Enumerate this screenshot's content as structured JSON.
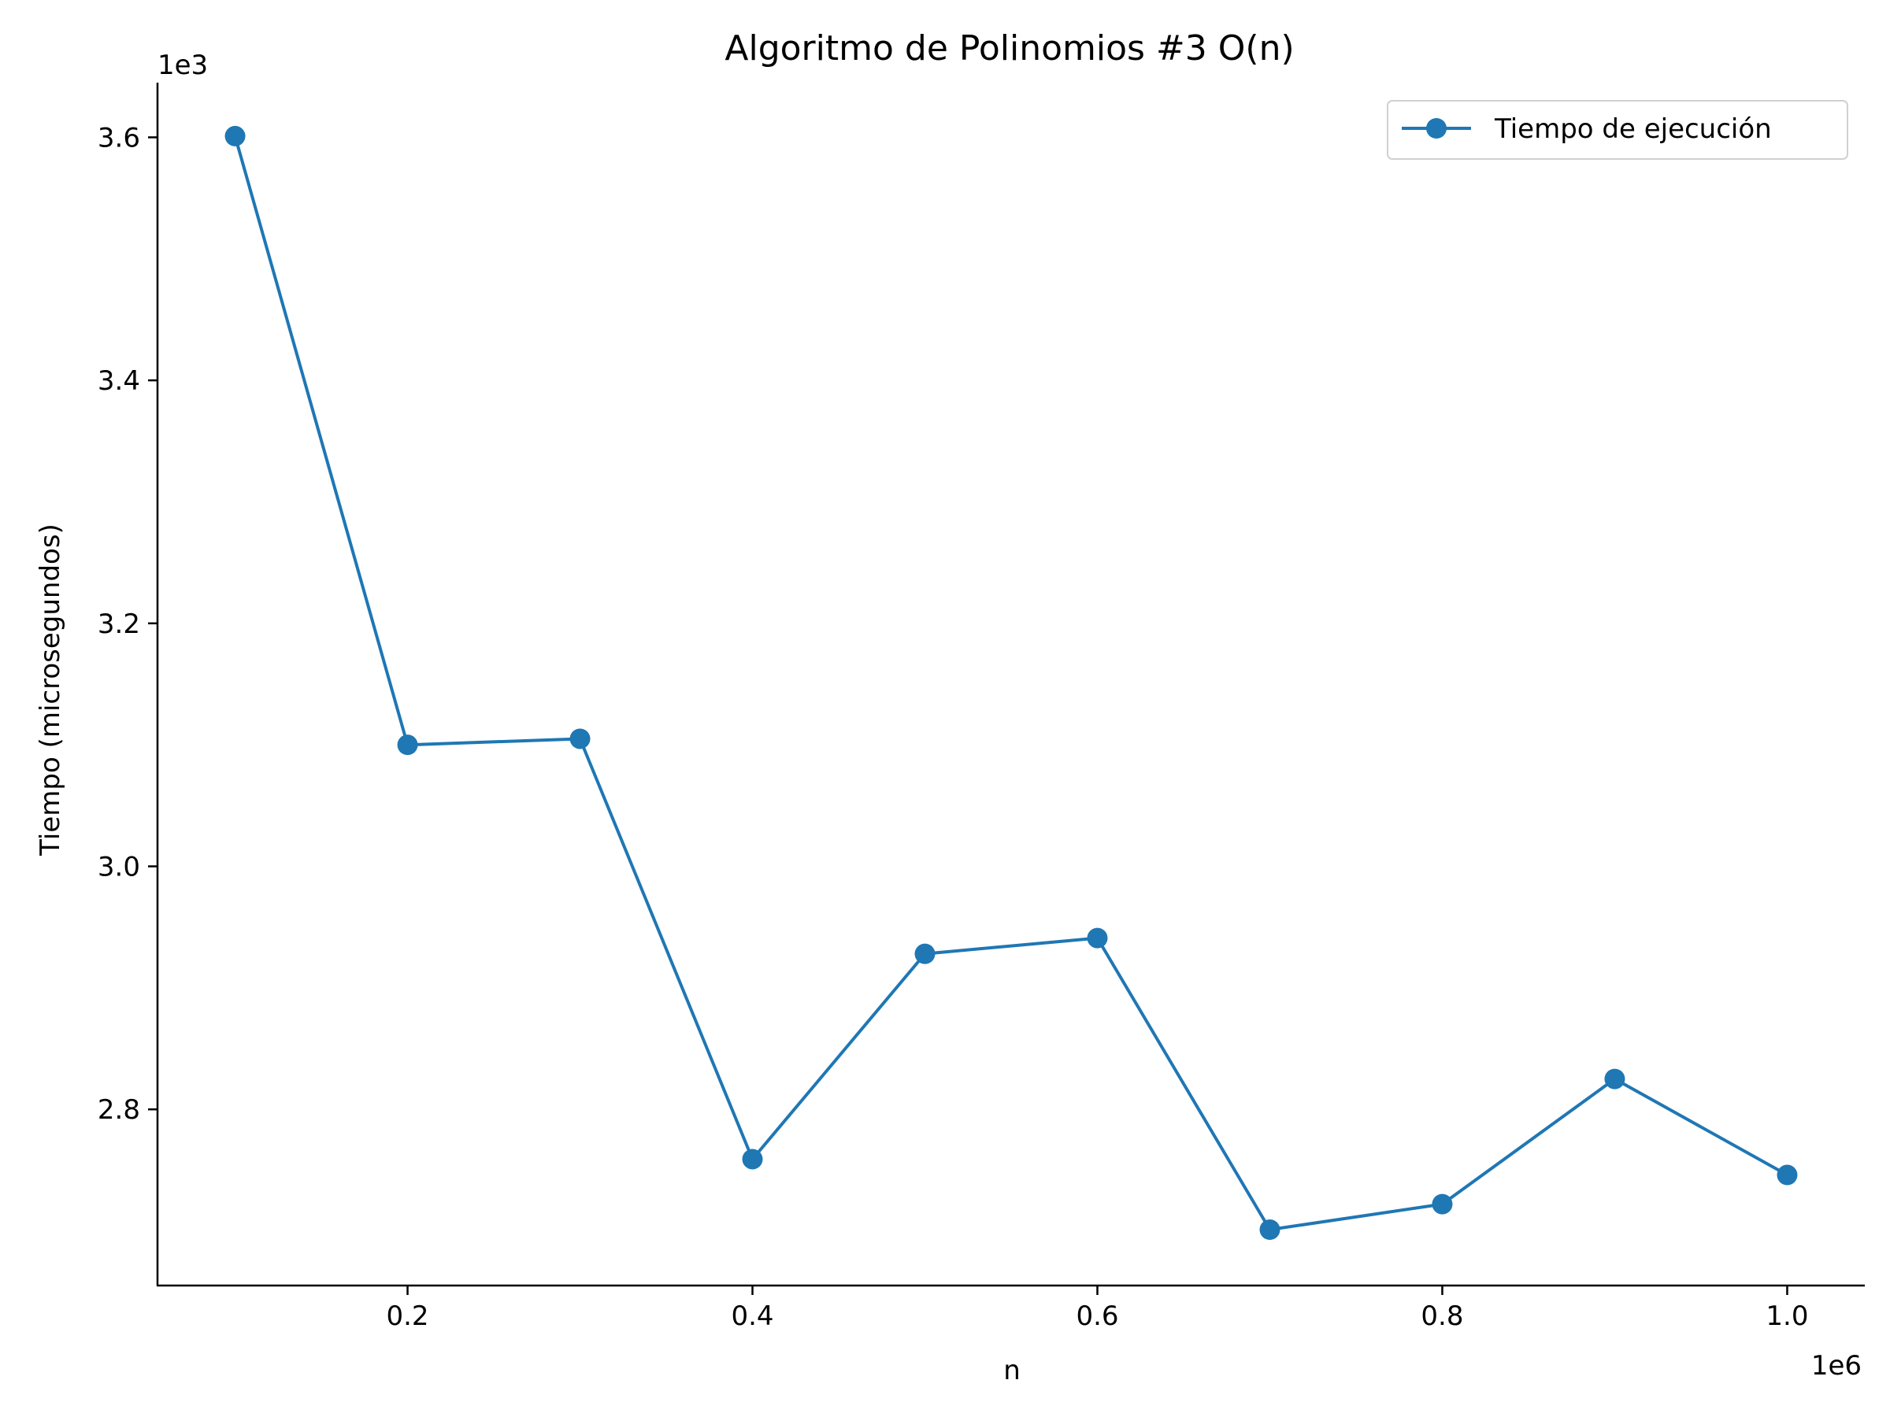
{
  "chart_data": {
    "type": "line",
    "title": "Algoritmo de Polinomios #3 O(n)",
    "xlabel": "n",
    "ylabel": "Tiempo (microsegundos)",
    "x_offset_label": "1e6",
    "y_offset_label": "1e3",
    "x_ticks": [
      "0.2",
      "0.4",
      "0.6",
      "0.8",
      "1.0"
    ],
    "y_ticks": [
      "2.8",
      "3.0",
      "3.2",
      "3.4",
      "3.6"
    ],
    "xlim": [
      55000,
      1045000
    ],
    "ylim": [
      2655,
      3645
    ],
    "grid": false,
    "legend_position": "top-right",
    "color": "#1f77b4",
    "series": [
      {
        "name": "Tiempo de ejecución",
        "x": [
          100000,
          200000,
          300000,
          400000,
          500000,
          600000,
          700000,
          800000,
          900000,
          1000000
        ],
        "y": [
          3601,
          3100,
          3105,
          2759,
          2928,
          2941,
          2701,
          2722,
          2825,
          2746
        ]
      }
    ]
  }
}
